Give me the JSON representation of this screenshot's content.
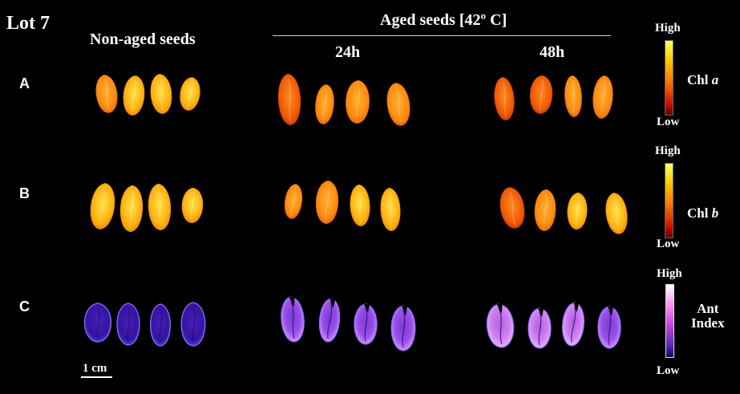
{
  "figure": {
    "lot": "Lot 7",
    "non_aged_label": "Non-aged seeds",
    "aged_label": "Aged seeds [42º C]",
    "col_24h": "24h",
    "col_48h": "48h",
    "rows": [
      "A",
      "B",
      "C"
    ],
    "scale_bar": "1 cm"
  },
  "legends": {
    "chl_a": {
      "high": "High",
      "low": "Low",
      "name": "Chl",
      "var": "a"
    },
    "chl_b": {
      "high": "High",
      "low": "Low",
      "name": "Chl",
      "var": "b"
    },
    "ant": {
      "high": "High",
      "low": "Low",
      "line1": "Ant",
      "line2": "Index"
    }
  },
  "colors": {
    "background": "#000000",
    "chl_high": "#ffff66",
    "chl_low": "#660000",
    "ant_high": "#ffffff",
    "ant_low": "#1a0066"
  }
}
